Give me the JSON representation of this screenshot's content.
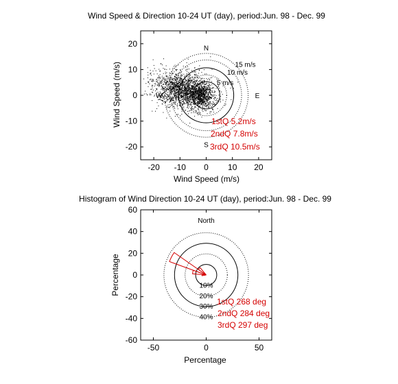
{
  "chart_data": [
    {
      "type": "scatter",
      "title": "Wind Speed & Direction 10-24 UT (day),  period:Jun. 98 - Dec. 99",
      "xlabel": "Wind Speed (m/s)",
      "ylabel": "Wind Speed (m/s)",
      "xlim": [
        -25,
        25
      ],
      "ylim": [
        -25,
        25
      ],
      "xticks": [
        -20,
        -10,
        0,
        10,
        20
      ],
      "yticks": [
        -20,
        -10,
        0,
        10,
        20
      ],
      "xtick_labels": [
        "-20",
        "-10",
        "0",
        "10",
        "20"
      ],
      "ytick_labels": [
        "-20",
        "-10",
        "0",
        "10",
        "20"
      ],
      "grid": false,
      "compass": [
        {
          "label": "N",
          "x": 0,
          "y": 18.5
        },
        {
          "label": "E",
          "x": 19.5,
          "y": 0
        },
        {
          "label": "S",
          "x": 0,
          "y": -19
        },
        {
          "label": "W",
          "x": -18,
          "y": 0
        }
      ],
      "quartile_circles": [
        {
          "radius": 5.2,
          "style": "solid"
        },
        {
          "radius": 7.8,
          "style": "dotted"
        },
        {
          "radius": 10.5,
          "style": "solid"
        },
        {
          "radius": 13.5,
          "style": "dotted"
        },
        {
          "radius": 16,
          "style": "dotted"
        }
      ],
      "ring_labels": [
        {
          "text": "15 m/s",
          "x": 11,
          "y": 11
        },
        {
          "text": "10 m/s",
          "x": 8,
          "y": 8
        },
        {
          "text": "5 m/s",
          "x": 4,
          "y": 4
        }
      ],
      "annotations": [
        "1stQ 5.2m/s",
        "2ndQ 7.8m/s",
        "3rdQ 10.5m/s"
      ],
      "annotation_color": "#d40000",
      "point_color": "#000000",
      "cloud": {
        "center": [
          -9,
          2
        ],
        "spread": [
          5.5,
          3.5
        ]
      }
    },
    {
      "type": "rose",
      "title": "Histogram of Wind Direction 10-24 UT (day),  period:Jun. 98 - Dec. 99",
      "xlabel": "Percentage",
      "ylabel": "Percentage",
      "xlim": [
        -62,
        62
      ],
      "ylim": [
        -60,
        60
      ],
      "xticks": [
        -50,
        0,
        50
      ],
      "yticks": [
        -60,
        -40,
        -20,
        0,
        20,
        40,
        60
      ],
      "xtick_labels": [
        "-50",
        "0",
        "50"
      ],
      "ytick_labels": [
        "-60",
        "-40",
        "-20",
        "0",
        "20",
        "40",
        "60"
      ],
      "north_label": "North",
      "ring_percents": [
        10,
        20,
        30,
        40
      ],
      "ring_labels": [
        "10%",
        "20%",
        "30%",
        "40%"
      ],
      "ring_styles": [
        "solid",
        "dotted",
        "solid",
        "dotted"
      ],
      "sectors": [
        {
          "from_deg": 260,
          "to_deg": 275,
          "percent": 4
        },
        {
          "from_deg": 275,
          "to_deg": 290,
          "percent": 13
        },
        {
          "from_deg": 290,
          "to_deg": 305,
          "percent": 37
        },
        {
          "from_deg": 305,
          "to_deg": 320,
          "percent": 9
        }
      ],
      "annotations": [
        "1stQ 268 deg",
        "2ndQ 284 deg",
        "3rdQ 297 deg"
      ],
      "annotation_color": "#d40000",
      "sector_color": "#d40000"
    }
  ]
}
